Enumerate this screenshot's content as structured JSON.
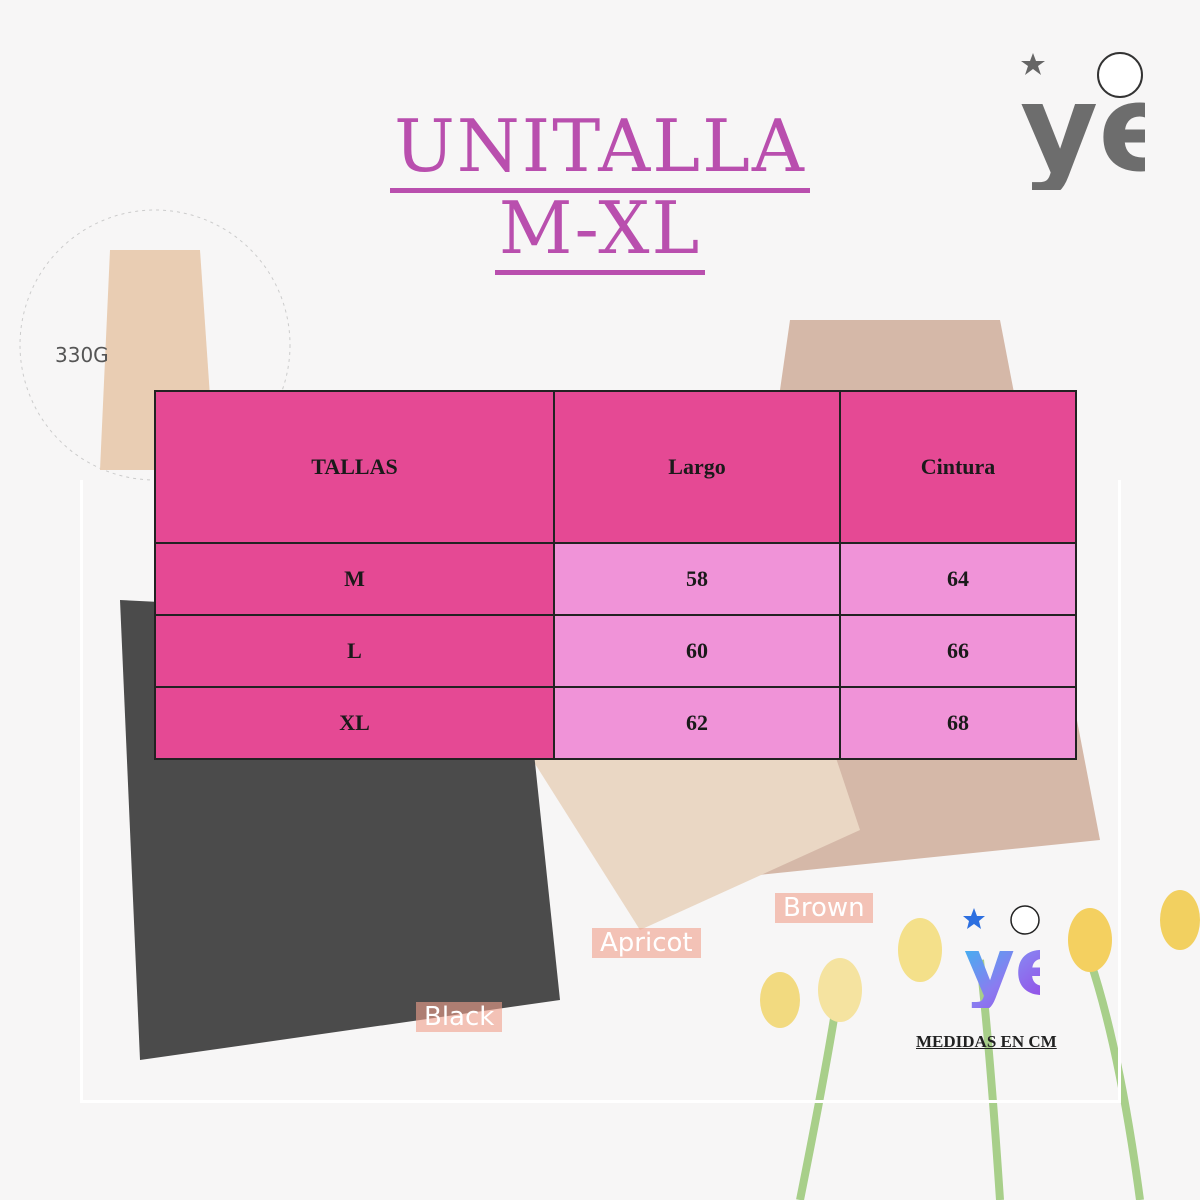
{
  "title": {
    "line1": "UNITALLA",
    "line2": "M-XL"
  },
  "photo_labels": {
    "weight": "330G",
    "brown": "Brown",
    "apricot": "Apricot",
    "black": "Black"
  },
  "table": {
    "headers": [
      "TALLAS",
      "Largo",
      "Cintura"
    ],
    "rows": [
      [
        "M",
        "58",
        "64"
      ],
      [
        "L",
        "60",
        "66"
      ],
      [
        "XL",
        "62",
        "68"
      ]
    ]
  },
  "footer_note": "MEDIDAS EN CM",
  "logo_text": "ye",
  "colors": {
    "title": "#b94fae",
    "header_cell": "#e54994",
    "value_cell": "#f093d8"
  }
}
